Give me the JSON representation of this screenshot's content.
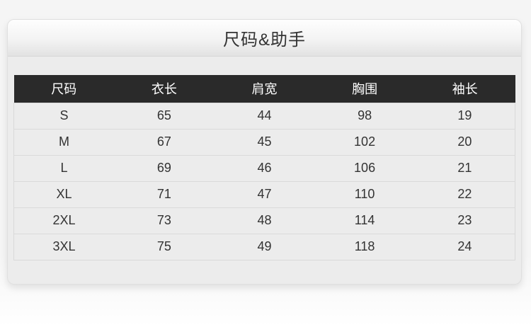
{
  "header": {
    "title": "尺码&助手"
  },
  "size_table": {
    "columns": [
      "尺码",
      "衣长",
      "肩宽",
      "胸围",
      "袖长"
    ],
    "rows": [
      [
        "S",
        "65",
        "44",
        "98",
        "19"
      ],
      [
        "M",
        "67",
        "45",
        "102",
        "20"
      ],
      [
        "L",
        "69",
        "46",
        "106",
        "21"
      ],
      [
        "XL",
        "71",
        "47",
        "110",
        "22"
      ],
      [
        "2XL",
        "73",
        "48",
        "114",
        "23"
      ],
      [
        "3XL",
        "75",
        "49",
        "118",
        "24"
      ]
    ]
  },
  "colors": {
    "table_header_bg": "#2a2a2a",
    "table_header_text": "#ffffff",
    "card_bg": "#ececec",
    "title_bar_gradient_top": "#fefefe",
    "title_bar_gradient_bottom": "#e2e2e2",
    "row_divider": "#dadada",
    "body_text": "#333333"
  }
}
